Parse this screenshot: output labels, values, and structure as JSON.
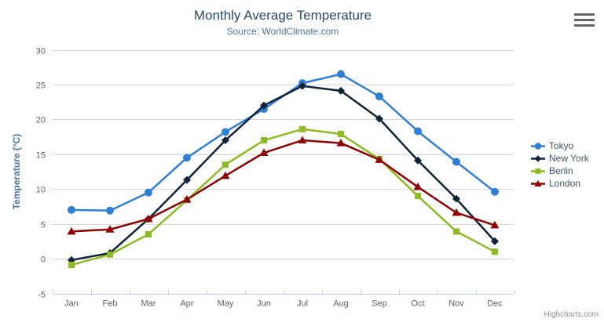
{
  "header": {
    "menu_icon": "hamburger-icon"
  },
  "credits": {
    "label": "Highcharts.com"
  },
  "chart_data": {
    "type": "line",
    "title": "Monthly Average Temperature",
    "subtitle": "Source: WorldClimate.com",
    "xlabel": "",
    "ylabel": "Temperature (°C)",
    "ylim": [
      -5,
      30
    ],
    "ytick_interval": 5,
    "grid": true,
    "legend_position": "right",
    "categories": [
      "Jan",
      "Feb",
      "Mar",
      "Apr",
      "May",
      "Jun",
      "Jul",
      "Aug",
      "Sep",
      "Oct",
      "Nov",
      "Dec"
    ],
    "series": [
      {
        "name": "Tokyo",
        "color": "#2f7ed8",
        "marker": "circle",
        "values": [
          7.0,
          6.9,
          9.5,
          14.5,
          18.2,
          21.5,
          25.2,
          26.5,
          23.3,
          18.3,
          13.9,
          9.6
        ]
      },
      {
        "name": "New York",
        "color": "#0d233a",
        "marker": "diamond",
        "values": [
          -0.2,
          0.8,
          5.7,
          11.3,
          17.0,
          22.0,
          24.8,
          24.1,
          20.1,
          14.1,
          8.6,
          2.5
        ]
      },
      {
        "name": "Berlin",
        "color": "#8bbc21",
        "marker": "square",
        "values": [
          -0.9,
          0.6,
          3.5,
          8.4,
          13.5,
          17.0,
          18.6,
          17.9,
          14.3,
          9.0,
          3.9,
          1.0
        ]
      },
      {
        "name": "London",
        "color": "#910000",
        "marker": "triangle",
        "values": [
          3.9,
          4.2,
          5.7,
          8.5,
          11.9,
          15.2,
          17.0,
          16.6,
          14.2,
          10.3,
          6.6,
          4.8
        ]
      }
    ],
    "colors": {
      "title": "#274b6d",
      "subtitle": "#4d759e",
      "axis_title": "#4d759e",
      "tick_label": "#606060",
      "grid_line": "#d8d8d8",
      "axis_line": "#c0d0e0",
      "legend_text": "#3E576F"
    }
  }
}
